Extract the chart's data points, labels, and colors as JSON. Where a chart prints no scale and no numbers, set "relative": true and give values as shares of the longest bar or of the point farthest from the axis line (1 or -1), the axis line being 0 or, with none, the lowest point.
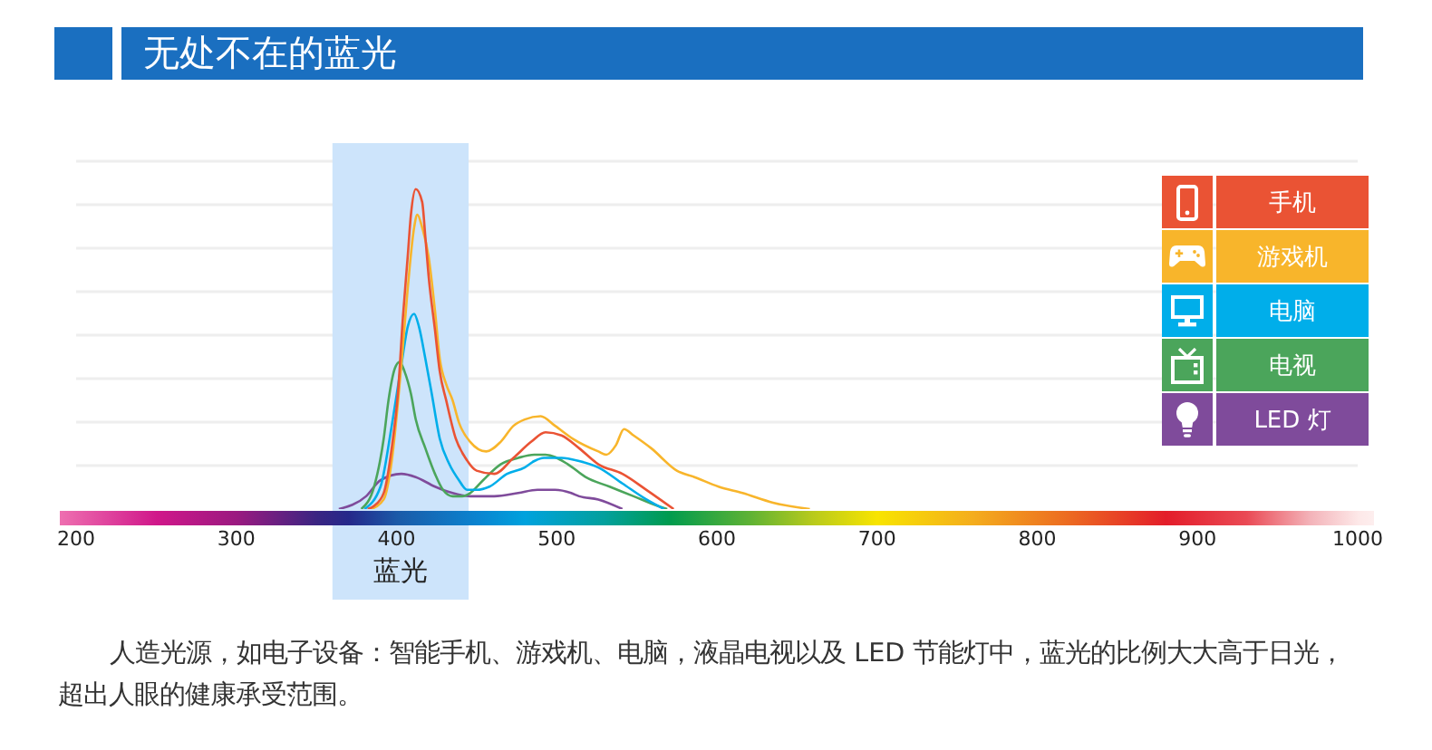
{
  "chart_data": {
    "type": "line",
    "title": "无处不在的蓝光",
    "annotations": [
      "人造光源，如电子设备：智能手机、游戏机、电脑，液晶电视以及 LED 节能灯中，蓝光的比例大大高于日光，超出人眼的健康承受范围。"
    ],
    "relative": true,
    "xlim": [
      200,
      1000
    ],
    "xticks": [
      200,
      300,
      400,
      500,
      600,
      700,
      800,
      900,
      1000
    ],
    "series": [
      {
        "name": "手机",
        "color": "#ea5334",
        "x": [
          382,
          386,
          392,
          397,
          401,
          404,
          407,
          409,
          412,
          416,
          418,
          420,
          424,
          427,
          431,
          437,
          443,
          450,
          461,
          473,
          484,
          493,
          503,
          514,
          526,
          541,
          556,
          573
        ],
        "values": [
          0,
          0.01,
          0.05,
          0.19,
          0.37,
          0.6,
          0.79,
          0.92,
          1,
          0.96,
          0.85,
          0.73,
          0.56,
          0.43,
          0.34,
          0.22,
          0.16,
          0.12,
          0.11,
          0.16,
          0.21,
          0.24,
          0.23,
          0.19,
          0.14,
          0.11,
          0.06,
          0
        ]
      },
      {
        "name": "游戏机",
        "color": "#f8b52b",
        "x": [
          384,
          392,
          397,
          403,
          407,
          411,
          413,
          416,
          420,
          424,
          427,
          431,
          435,
          439,
          446,
          456,
          465,
          473,
          480,
          490,
          499,
          510,
          526,
          531,
          537,
          542,
          548,
          559,
          575,
          586,
          601,
          616,
          635,
          658
        ],
        "values": [
          0,
          0.03,
          0.15,
          0.45,
          0.69,
          0.88,
          0.92,
          0.88,
          0.79,
          0.62,
          0.47,
          0.39,
          0.34,
          0.27,
          0.21,
          0.18,
          0.21,
          0.26,
          0.28,
          0.29,
          0.26,
          0.22,
          0.18,
          0.17,
          0.2,
          0.25,
          0.23,
          0.19,
          0.12,
          0.1,
          0.07,
          0.05,
          0.02,
          0
        ]
      },
      {
        "name": "电脑",
        "color": "#00aeea",
        "x": [
          380,
          390,
          397,
          403,
          407,
          411,
          414,
          418,
          422,
          427,
          433,
          439,
          444,
          450,
          458,
          469,
          480,
          486,
          492,
          503,
          514,
          526,
          541,
          556,
          567
        ],
        "values": [
          0,
          0.07,
          0.26,
          0.45,
          0.57,
          0.61,
          0.57,
          0.47,
          0.36,
          0.22,
          0.14,
          0.09,
          0.06,
          0.06,
          0.07,
          0.11,
          0.13,
          0.15,
          0.16,
          0.16,
          0.15,
          0.13,
          0.08,
          0.03,
          0
        ]
      },
      {
        "name": "电视",
        "color": "#4ba55b",
        "x": [
          378,
          386,
          392,
          395,
          399,
          402,
          405,
          409,
          412,
          418,
          424,
          429,
          435,
          441,
          446,
          454,
          465,
          476,
          486,
          493,
          507,
          518,
          533,
          548,
          563,
          569
        ],
        "values": [
          0,
          0.07,
          0.22,
          0.34,
          0.44,
          0.46,
          0.43,
          0.36,
          0.28,
          0.19,
          0.11,
          0.06,
          0.04,
          0.04,
          0.05,
          0.09,
          0.14,
          0.16,
          0.17,
          0.17,
          0.14,
          0.1,
          0.07,
          0.04,
          0.01,
          0
        ]
      },
      {
        "name": "LED 灯",
        "color": "#7f4b9b",
        "x": [
          364,
          381,
          390,
          403,
          412,
          424,
          435,
          446,
          461,
          476,
          488,
          499,
          509,
          514,
          526,
          541
        ],
        "values": [
          0,
          0.04,
          0.09,
          0.11,
          0.1,
          0.07,
          0.05,
          0.04,
          0.04,
          0.05,
          0.06,
          0.06,
          0.05,
          0.04,
          0.03,
          0
        ]
      }
    ],
    "bands": [
      {
        "axis": "x",
        "from": 360,
        "to": 445,
        "label": "蓝光",
        "color": "#cde4fb"
      }
    ],
    "grid": "y",
    "legend": "right"
  }
}
